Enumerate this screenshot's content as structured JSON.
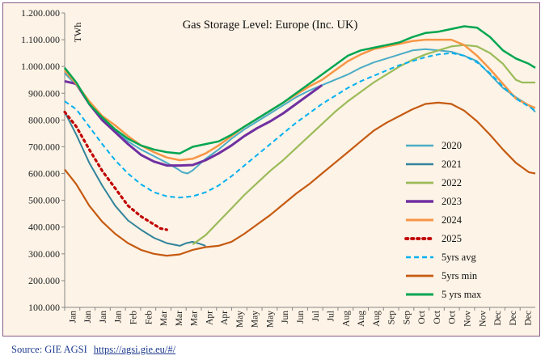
{
  "source": {
    "text": "Source: GIE AGSI",
    "url": "https://agsi.gie.eu/#/"
  },
  "chart_data": {
    "type": "line",
    "title": "Gas Storage Level: Europe (Inc. UK)",
    "ylabel": "TWh",
    "xlabel": "",
    "ylim": [
      100,
      1200
    ],
    "yticks": [
      100,
      200,
      300,
      400,
      500,
      600,
      700,
      800,
      900,
      1000,
      1100,
      1200
    ],
    "ytick_labels": [
      "100.000",
      "200.000",
      "300.000",
      "400.000",
      "500.000",
      "600.000",
      "700.000",
      "800.000",
      "900.000",
      "1.000.000",
      "1.100.000",
      "1.200.000"
    ],
    "x_tick_labels": [
      "Jan",
      "Jan",
      "Jan",
      "Jan",
      "Feb",
      "Feb",
      "Mar",
      "Mar",
      "Mar",
      "Apr",
      "Apr",
      "May",
      "May",
      "May",
      "Jun",
      "Jun",
      "Jul",
      "Jul",
      "Aug",
      "Aug",
      "Aug",
      "Sep",
      "Sep",
      "Oct",
      "Oct",
      "Oct",
      "Nov",
      "Nov",
      "Dec",
      "Dec",
      "Dec"
    ],
    "x_range_days": [
      1,
      365
    ],
    "grid": false,
    "legend_position": "right",
    "series": [
      {
        "name": "2020",
        "color": "#4bacc6",
        "dash": "solid",
        "width": 2,
        "x": [
          1,
          10,
          20,
          30,
          40,
          50,
          60,
          70,
          80,
          88,
          92,
          96,
          100,
          110,
          120,
          130,
          140,
          150,
          160,
          170,
          180,
          190,
          200,
          210,
          220,
          230,
          240,
          250,
          260,
          270,
          280,
          290,
          300,
          310,
          320,
          330,
          340,
          350,
          360,
          365
        ],
        "y": [
          975,
          930,
          870,
          805,
          760,
          720,
          690,
          665,
          640,
          618,
          605,
          600,
          612,
          655,
          690,
          730,
          765,
          795,
          825,
          855,
          885,
          910,
          930,
          950,
          970,
          995,
          1015,
          1030,
          1045,
          1060,
          1065,
          1060,
          1055,
          1040,
          1020,
          970,
          920,
          885,
          855,
          830
        ]
      },
      {
        "name": "2021",
        "color": "#31849b",
        "dash": "solid",
        "width": 2,
        "x": [
          1,
          10,
          20,
          30,
          40,
          50,
          60,
          70,
          80,
          90,
          95,
          100,
          105,
          110
        ],
        "y": [
          830,
          745,
          640,
          555,
          480,
          425,
          390,
          360,
          340,
          330,
          340,
          345,
          338,
          330
        ]
      },
      {
        "name": "2022",
        "color": "#9bbb59",
        "dash": "solid",
        "width": 2.2,
        "x": [
          100,
          110,
          120,
          130,
          140,
          150,
          160,
          170,
          180,
          190,
          200,
          210,
          220,
          230,
          240,
          250,
          260,
          270,
          280,
          290,
          300,
          310,
          320,
          330,
          340,
          350,
          355,
          360,
          365
        ],
        "y": [
          335,
          370,
          420,
          470,
          520,
          565,
          610,
          650,
          695,
          740,
          785,
          830,
          870,
          905,
          940,
          970,
          1000,
          1025,
          1045,
          1060,
          1075,
          1080,
          1075,
          1050,
          1010,
          950,
          940,
          940,
          940
        ]
      },
      {
        "name": "2023",
        "color": "#7030a0",
        "dash": "solid",
        "width": 3,
        "x": [
          1,
          10,
          20,
          30,
          40,
          50,
          60,
          70,
          80,
          90,
          100,
          110,
          120,
          130,
          140,
          150,
          160,
          170,
          180,
          190,
          200
        ],
        "y": [
          945,
          935,
          860,
          800,
          755,
          710,
          670,
          645,
          630,
          630,
          632,
          650,
          675,
          705,
          740,
          770,
          795,
          825,
          860,
          895,
          930
        ]
      },
      {
        "name": "2024",
        "color": "#f79646",
        "dash": "solid",
        "width": 2.5,
        "x": [
          1,
          10,
          20,
          30,
          40,
          50,
          60,
          70,
          80,
          90,
          100,
          110,
          120,
          130,
          140,
          150,
          160,
          170,
          180,
          190,
          200,
          210,
          220,
          230,
          240,
          250,
          260,
          270,
          280,
          290,
          300,
          310,
          320,
          330,
          340,
          350,
          360,
          365
        ],
        "y": [
          985,
          935,
          870,
          815,
          780,
          740,
          705,
          680,
          660,
          650,
          655,
          675,
          705,
          740,
          775,
          805,
          835,
          865,
          895,
          925,
          950,
          985,
          1020,
          1045,
          1065,
          1075,
          1085,
          1095,
          1100,
          1100,
          1100,
          1080,
          1040,
          990,
          935,
          880,
          855,
          845
        ]
      },
      {
        "name": "2025",
        "color": "#c00000",
        "dash": "dotted",
        "width": 3.2,
        "x": [
          1,
          10,
          20,
          30,
          40,
          50,
          60,
          70,
          75,
          80
        ],
        "y": [
          830,
          775,
          690,
          610,
          545,
          480,
          440,
          410,
          395,
          390
        ]
      },
      {
        "name": "5yrs avg",
        "color": "#00b0f0",
        "dash": "dashed",
        "width": 2,
        "x": [
          1,
          10,
          20,
          30,
          40,
          50,
          60,
          70,
          80,
          90,
          100,
          110,
          120,
          130,
          140,
          150,
          160,
          170,
          180,
          190,
          200,
          210,
          220,
          230,
          240,
          250,
          260,
          270,
          280,
          290,
          300,
          310,
          320,
          330,
          340,
          350,
          360,
          365
        ],
        "y": [
          870,
          840,
          775,
          710,
          650,
          600,
          560,
          530,
          515,
          510,
          515,
          530,
          555,
          590,
          630,
          670,
          710,
          750,
          790,
          825,
          860,
          890,
          920,
          945,
          965,
          985,
          1005,
          1020,
          1035,
          1045,
          1050,
          1040,
          1015,
          975,
          925,
          880,
          850,
          835
        ]
      },
      {
        "name": "5yrs min",
        "color": "#c55a11",
        "dash": "solid",
        "width": 2.2,
        "x": [
          1,
          10,
          20,
          30,
          40,
          50,
          60,
          70,
          80,
          90,
          100,
          110,
          120,
          130,
          140,
          150,
          160,
          170,
          180,
          190,
          200,
          210,
          220,
          230,
          240,
          250,
          260,
          270,
          280,
          290,
          300,
          310,
          320,
          330,
          340,
          350,
          360,
          365
        ],
        "y": [
          615,
          560,
          480,
          420,
          375,
          340,
          315,
          300,
          293,
          298,
          315,
          325,
          330,
          345,
          375,
          410,
          445,
          485,
          525,
          560,
          600,
          640,
          680,
          720,
          760,
          790,
          815,
          840,
          860,
          865,
          860,
          835,
          795,
          745,
          690,
          640,
          605,
          600
        ]
      },
      {
        "name": "5 yrs max",
        "color": "#00a651",
        "dash": "solid",
        "width": 2.5,
        "x": [
          1,
          10,
          20,
          30,
          40,
          50,
          60,
          70,
          80,
          90,
          100,
          110,
          120,
          130,
          140,
          150,
          160,
          170,
          180,
          190,
          200,
          210,
          220,
          230,
          240,
          250,
          260,
          270,
          280,
          290,
          300,
          310,
          320,
          330,
          340,
          350,
          360,
          365
        ],
        "y": [
          995,
          940,
          860,
          810,
          765,
          730,
          705,
          690,
          680,
          675,
          700,
          710,
          720,
          745,
          775,
          805,
          835,
          865,
          900,
          935,
          970,
          1005,
          1040,
          1060,
          1070,
          1080,
          1090,
          1110,
          1125,
          1130,
          1140,
          1150,
          1145,
          1110,
          1060,
          1030,
          1010,
          995
        ]
      }
    ]
  }
}
